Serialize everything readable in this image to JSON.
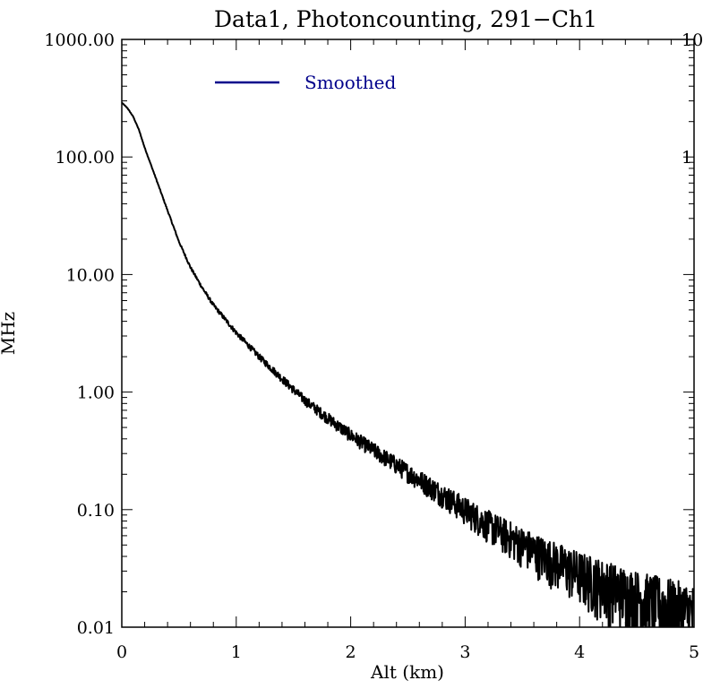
{
  "chart_data": {
    "type": "line",
    "title": "Data1, Photoncounting, 291−Ch1",
    "xlabel": "Alt (km)",
    "ylabel": "MHz",
    "x_scale": "linear",
    "y_scale": "log",
    "xlim": [
      0,
      5
    ],
    "ylim": [
      0.01,
      1000
    ],
    "x_ticks": [
      0,
      1,
      2,
      3,
      4,
      5
    ],
    "x_tick_labels": [
      "0",
      "1",
      "2",
      "3",
      "4",
      "5"
    ],
    "y_ticks": [
      0.01,
      0.1,
      1,
      10,
      100,
      1000
    ],
    "y_tick_labels": [
      "0.01",
      "0.10",
      "1.00",
      "10.00",
      "100.00",
      "1000.00"
    ],
    "right_axis_fragments": [
      "10",
      "1"
    ],
    "grid": false,
    "legend_position": "top-left",
    "series": [
      {
        "name": "Smoothed",
        "color": "#00008b",
        "curve_color": "#000000",
        "noisy": true,
        "x": [
          0,
          0.05,
          0.1,
          0.15,
          0.2,
          0.3,
          0.4,
          0.5,
          0.6,
          0.7,
          0.8,
          0.9,
          1.0,
          1.2,
          1.4,
          1.6,
          1.8,
          2.0,
          2.2,
          2.4,
          2.6,
          2.8,
          3.0,
          3.2,
          3.4,
          3.6,
          3.8,
          4.0,
          4.2,
          4.4,
          4.6,
          4.8,
          5.0
        ],
        "y": [
          290,
          260,
          220,
          170,
          120,
          65,
          35,
          19,
          11.5,
          7.8,
          5.5,
          4.2,
          3.2,
          2.0,
          1.3,
          0.85,
          0.6,
          0.43,
          0.32,
          0.24,
          0.18,
          0.135,
          0.1,
          0.075,
          0.058,
          0.045,
          0.036,
          0.029,
          0.024,
          0.02,
          0.017,
          0.015,
          0.013
        ]
      }
    ]
  }
}
